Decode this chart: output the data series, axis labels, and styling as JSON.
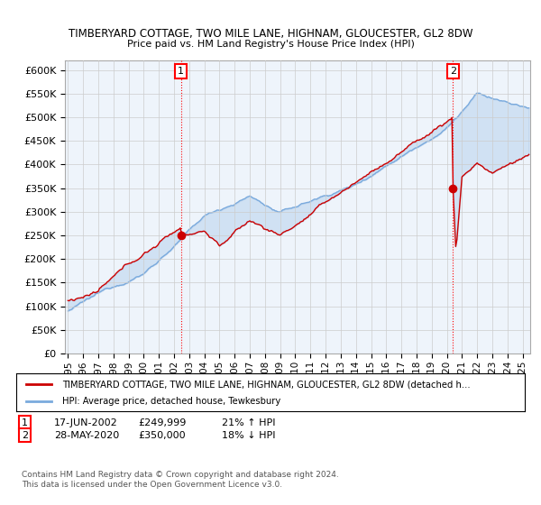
{
  "title1": "TIMBERYARD COTTAGE, TWO MILE LANE, HIGHNAM, GLOUCESTER, GL2 8DW",
  "title2": "Price paid vs. HM Land Registry's House Price Index (HPI)",
  "ylabel_ticks": [
    "£0",
    "£50K",
    "£100K",
    "£150K",
    "£200K",
    "£250K",
    "£300K",
    "£350K",
    "£400K",
    "£450K",
    "£500K",
    "£550K",
    "£600K"
  ],
  "ytick_values": [
    0,
    50000,
    100000,
    150000,
    200000,
    250000,
    300000,
    350000,
    400000,
    450000,
    500000,
    550000,
    600000
  ],
  "ylim": [
    0,
    620000
  ],
  "xlim_start": 1994.8,
  "xlim_end": 2025.5,
  "xtick_labels": [
    "1995",
    "1996",
    "1997",
    "1998",
    "1999",
    "2000",
    "2001",
    "2002",
    "2003",
    "2004",
    "2005",
    "2006",
    "2007",
    "2008",
    "2009",
    "2010",
    "2011",
    "2012",
    "2013",
    "2014",
    "2015",
    "2016",
    "2017",
    "2018",
    "2019",
    "2020",
    "2021",
    "2022",
    "2023",
    "2024",
    "2025"
  ],
  "sale1_x": 2002.46,
  "sale1_y": 249999,
  "sale1_label": "1",
  "sale1_date": "17-JUN-2002",
  "sale1_price": "£249,999",
  "sale1_hpi": "21% ↑ HPI",
  "sale2_x": 2020.41,
  "sale2_y": 350000,
  "sale2_label": "2",
  "sale2_date": "28-MAY-2020",
  "sale2_price": "£350,000",
  "sale2_hpi": "18% ↓ HPI",
  "legend_line1": "TIMBERYARD COTTAGE, TWO MILE LANE, HIGHNAM, GLOUCESTER, GL2 8DW (detached h...",
  "legend_line2": "HPI: Average price, detached house, Tewkesbury",
  "red_color": "#cc0000",
  "blue_color": "#7aaadd",
  "fill_color": "#ddeeff",
  "bg_color": "#eef4fb",
  "footer1": "Contains HM Land Registry data © Crown copyright and database right 2024.",
  "footer2": "This data is licensed under the Open Government Licence v3.0.",
  "grid_color": "#cccccc"
}
